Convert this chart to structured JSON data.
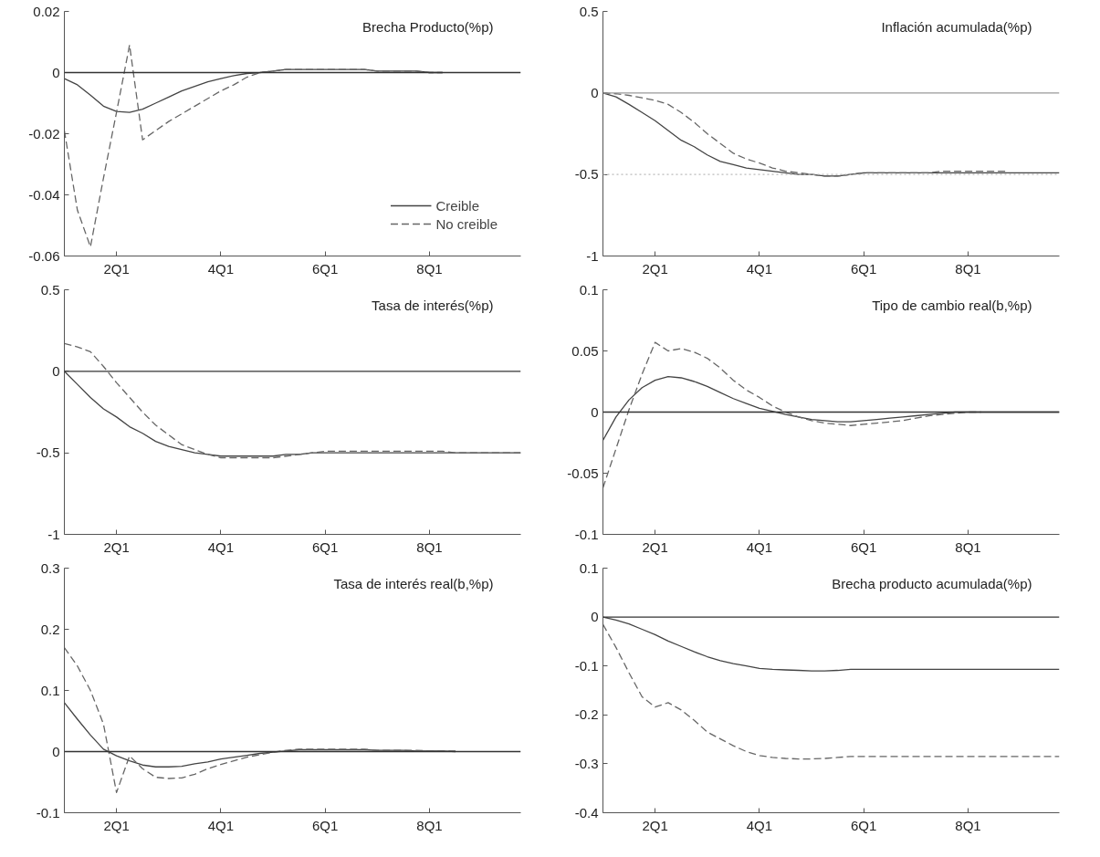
{
  "chart_data": [
    {
      "type": "line",
      "title": "Brecha Producto(%p)",
      "legend": "bottom right",
      "grid": false,
      "categories": [
        null,
        null,
        null,
        null,
        "2Q1",
        null,
        null,
        null,
        null,
        null,
        null,
        null,
        "4Q1",
        null,
        null,
        null,
        null,
        null,
        null,
        null,
        "6Q1",
        null,
        null,
        null,
        null,
        null,
        null,
        null,
        "8Q1",
        null,
        null,
        null,
        null,
        null,
        null,
        null
      ],
      "ylim": [
        -0.06,
        0.02
      ],
      "yticks": [
        -0.06,
        -0.04,
        -0.02,
        0,
        0.02
      ],
      "ref_lines": [
        {
          "axis": "y",
          "value": 0,
          "color": "#333333",
          "line_style": "solid"
        }
      ],
      "series": [
        {
          "name": "Creible",
          "color": "#444444",
          "line_style": "solid",
          "values": [
            -0.002,
            -0.004,
            -0.0074,
            -0.011,
            -0.0127,
            -0.013,
            -0.012,
            -0.01,
            -0.008,
            -0.006,
            -0.0045,
            -0.003,
            -0.002,
            -0.001,
            -0.0003,
            0,
            0.0005,
            0.001,
            0.001,
            0.001,
            0.001,
            0.001,
            0.001,
            0.001,
            0.0005,
            0.0005,
            0.0005,
            0.0005,
            0,
            0,
            null,
            null,
            null,
            null,
            null,
            null
          ]
        },
        {
          "name": "No creible",
          "color": "#666666",
          "line_style": "dashed",
          "values": [
            -0.019,
            -0.045,
            -0.057,
            -0.0345,
            -0.013,
            0.009,
            -0.022,
            -0.019,
            -0.016,
            -0.0135,
            -0.011,
            -0.0085,
            -0.006,
            -0.004,
            -0.0015,
            0,
            0.0005,
            0.001,
            0.001,
            0.001,
            0.001,
            0.001,
            0.001,
            0.001,
            0.0005,
            0.0005,
            0.0005,
            0.0005,
            0,
            0,
            null,
            null,
            null,
            null,
            null,
            null
          ]
        }
      ]
    },
    {
      "type": "line",
      "title": "Inflación acumulada(%p)",
      "grid": false,
      "categories": [
        null,
        null,
        null,
        null,
        "2Q1",
        null,
        null,
        null,
        null,
        null,
        null,
        null,
        "4Q1",
        null,
        null,
        null,
        null,
        null,
        null,
        null,
        "6Q1",
        null,
        null,
        null,
        null,
        null,
        null,
        null,
        "8Q1",
        null,
        null,
        null,
        null,
        null,
        null,
        null
      ],
      "ylim": [
        -1,
        0.5
      ],
      "yticks": [
        -1,
        -0.5,
        0,
        0.5
      ],
      "ref_lines": [
        {
          "axis": "y",
          "value": 0,
          "color": "#999999",
          "line_style": "solid"
        },
        {
          "axis": "y",
          "value": -0.5,
          "color": "#bbbbbb",
          "line_style": "dotted"
        }
      ],
      "series": [
        {
          "color": "#444444",
          "line_style": "solid",
          "values": [
            0,
            -0.024,
            -0.07,
            -0.12,
            -0.17,
            -0.23,
            -0.29,
            -0.33,
            -0.38,
            -0.42,
            -0.44,
            -0.46,
            -0.47,
            -0.48,
            -0.49,
            -0.5,
            -0.5,
            -0.51,
            -0.51,
            -0.5,
            -0.49,
            -0.49,
            -0.49,
            -0.49,
            -0.49,
            -0.49,
            -0.49,
            -0.49,
            -0.49,
            -0.49,
            -0.49,
            -0.49,
            -0.49,
            -0.49,
            -0.49,
            -0.49
          ]
        },
        {
          "color": "#666666",
          "line_style": "dashed",
          "values": [
            0,
            -0.005,
            -0.015,
            -0.03,
            -0.045,
            -0.07,
            -0.12,
            -0.18,
            -0.25,
            -0.31,
            -0.37,
            -0.405,
            -0.43,
            -0.46,
            -0.48,
            -0.49,
            -0.5,
            -0.51,
            -0.51,
            -0.5,
            -0.49,
            -0.49,
            -0.49,
            -0.49,
            -0.49,
            -0.49,
            -0.48,
            -0.48,
            -0.48,
            -0.48,
            -0.48,
            -0.48,
            null,
            null,
            null,
            null
          ]
        }
      ]
    },
    {
      "type": "line",
      "title": "Tasa de interés(%p)",
      "grid": false,
      "categories": [
        null,
        null,
        null,
        null,
        "2Q1",
        null,
        null,
        null,
        null,
        null,
        null,
        null,
        "4Q1",
        null,
        null,
        null,
        null,
        null,
        null,
        null,
        "6Q1",
        null,
        null,
        null,
        null,
        null,
        null,
        null,
        "8Q1",
        null,
        null,
        null,
        null,
        null,
        null,
        null
      ],
      "ylim": [
        -1,
        0.5
      ],
      "yticks": [
        -1,
        -0.5,
        0,
        0.5
      ],
      "ref_lines": [
        {
          "axis": "y",
          "value": 0,
          "color": "#333333",
          "line_style": "solid"
        }
      ],
      "series": [
        {
          "color": "#444444",
          "line_style": "solid",
          "values": [
            0,
            -0.08,
            -0.16,
            -0.23,
            -0.28,
            -0.34,
            -0.38,
            -0.43,
            -0.46,
            -0.48,
            -0.5,
            -0.51,
            -0.52,
            -0.52,
            -0.52,
            -0.52,
            -0.52,
            -0.51,
            -0.51,
            -0.5,
            -0.5,
            -0.5,
            -0.5,
            -0.5,
            -0.5,
            -0.5,
            -0.5,
            -0.5,
            -0.5,
            -0.5,
            -0.5,
            -0.5,
            -0.5,
            -0.5,
            -0.5,
            -0.5
          ]
        },
        {
          "color": "#666666",
          "line_style": "dashed",
          "values": [
            0.17,
            0.15,
            0.12,
            0.03,
            -0.07,
            -0.16,
            -0.25,
            -0.33,
            -0.39,
            -0.45,
            -0.48,
            -0.51,
            -0.53,
            -0.53,
            -0.53,
            -0.53,
            -0.53,
            -0.52,
            -0.51,
            -0.5,
            -0.49,
            -0.49,
            -0.49,
            -0.49,
            -0.49,
            -0.49,
            -0.49,
            -0.49,
            -0.49,
            -0.49,
            -0.5,
            -0.5,
            -0.5,
            -0.5,
            -0.5,
            -0.5
          ]
        }
      ]
    },
    {
      "type": "line",
      "title": "Tipo de cambio real(b,%p)",
      "grid": false,
      "categories": [
        null,
        null,
        null,
        null,
        "2Q1",
        null,
        null,
        null,
        null,
        null,
        null,
        null,
        "4Q1",
        null,
        null,
        null,
        null,
        null,
        null,
        null,
        "6Q1",
        null,
        null,
        null,
        null,
        null,
        null,
        null,
        "8Q1",
        null,
        null,
        null,
        null,
        null,
        null,
        null
      ],
      "ylim": [
        -0.1,
        0.1
      ],
      "yticks": [
        -0.1,
        -0.05,
        0,
        0.05,
        0.1
      ],
      "ref_lines": [
        {
          "axis": "y",
          "value": 0,
          "color": "#333333",
          "line_style": "solid"
        }
      ],
      "series": [
        {
          "color": "#444444",
          "line_style": "solid",
          "values": [
            -0.023,
            -0.004,
            0.01,
            0.02,
            0.026,
            0.029,
            0.028,
            0.025,
            0.021,
            0.016,
            0.011,
            0.007,
            0.003,
            0.0006,
            -0.002,
            -0.004,
            -0.006,
            -0.007,
            -0.008,
            -0.008,
            -0.007,
            -0.006,
            -0.005,
            -0.004,
            -0.003,
            -0.002,
            -0.001,
            0,
            0,
            0,
            0,
            0,
            0,
            0,
            0,
            0
          ]
        },
        {
          "color": "#666666",
          "line_style": "dashed",
          "values": [
            -0.062,
            -0.03,
            0.002,
            0.031,
            0.057,
            0.05,
            0.052,
            0.049,
            0.044,
            0.036,
            0.026,
            0.018,
            0.012,
            0.005,
            0,
            -0.004,
            -0.007,
            -0.009,
            -0.01,
            -0.011,
            -0.01,
            -0.009,
            -0.008,
            -0.007,
            -0.005,
            -0.003,
            -0.002,
            -0.001,
            0,
            0,
            null,
            null,
            null,
            null,
            null,
            null
          ]
        }
      ]
    },
    {
      "type": "line",
      "title": "Tasa de interés real(b,%p)",
      "grid": false,
      "categories": [
        null,
        null,
        null,
        null,
        "2Q1",
        null,
        null,
        null,
        null,
        null,
        null,
        null,
        "4Q1",
        null,
        null,
        null,
        null,
        null,
        null,
        null,
        "6Q1",
        null,
        null,
        null,
        null,
        null,
        null,
        null,
        "8Q1",
        null,
        null,
        null,
        null,
        null,
        null,
        null
      ],
      "ylim": [
        -0.1,
        0.3
      ],
      "yticks": [
        -0.1,
        0,
        0.1,
        0.2,
        0.3
      ],
      "ref_lines": [
        {
          "axis": "y",
          "value": 0,
          "color": "#333333",
          "line_style": "solid"
        }
      ],
      "series": [
        {
          "color": "#444444",
          "line_style": "solid",
          "values": [
            0.08,
            0.053,
            0.027,
            0.004,
            -0.007,
            -0.015,
            -0.022,
            -0.025,
            -0.025,
            -0.024,
            -0.02,
            -0.017,
            -0.012,
            -0.009,
            -0.006,
            -0.003,
            -0.001,
            0.001,
            0.003,
            0.003,
            0.003,
            0.003,
            0.003,
            0.003,
            0.002,
            0.002,
            0.002,
            0.001,
            0.001,
            0.001,
            0,
            null,
            null,
            null,
            null,
            null
          ]
        },
        {
          "color": "#666666",
          "line_style": "dashed",
          "values": [
            0.17,
            0.14,
            0.1,
            0.045,
            -0.067,
            -0.007,
            -0.028,
            -0.042,
            -0.044,
            -0.043,
            -0.037,
            -0.028,
            -0.021,
            -0.015,
            -0.009,
            -0.005,
            -0.001,
            0.002,
            0.004,
            0.004,
            0.004,
            0.004,
            0.004,
            0.004,
            0.002,
            0.002,
            0.002,
            0.002,
            0.001,
            0.001,
            0.001,
            null,
            null,
            null,
            null,
            null
          ]
        }
      ]
    },
    {
      "type": "line",
      "title": "Brecha producto acumulada(%p)",
      "grid": false,
      "categories": [
        null,
        null,
        null,
        null,
        "2Q1",
        null,
        null,
        null,
        null,
        null,
        null,
        null,
        "4Q1",
        null,
        null,
        null,
        null,
        null,
        null,
        null,
        "6Q1",
        null,
        null,
        null,
        null,
        null,
        null,
        null,
        "8Q1",
        null,
        null,
        null,
        null,
        null,
        null,
        null
      ],
      "ylim": [
        -0.4,
        0.1
      ],
      "yticks": [
        -0.4,
        -0.3,
        -0.2,
        -0.1,
        0,
        0.1
      ],
      "ref_lines": [
        {
          "axis": "y",
          "value": 0,
          "color": "#333333",
          "line_style": "solid"
        }
      ],
      "series": [
        {
          "color": "#444444",
          "line_style": "solid",
          "values": [
            0,
            -0.006,
            -0.014,
            -0.025,
            -0.036,
            -0.049,
            -0.06,
            -0.071,
            -0.081,
            -0.089,
            -0.095,
            -0.1,
            -0.105,
            -0.107,
            -0.108,
            -0.109,
            -0.11,
            -0.11,
            -0.109,
            -0.107,
            -0.107,
            -0.107,
            -0.107,
            -0.107,
            -0.107,
            -0.107,
            -0.107,
            -0.107,
            -0.107,
            -0.107,
            -0.107,
            -0.107,
            -0.107,
            -0.107,
            -0.107,
            -0.107
          ]
        },
        {
          "color": "#666666",
          "line_style": "dashed",
          "values": [
            -0.015,
            -0.062,
            -0.114,
            -0.163,
            -0.184,
            -0.175,
            -0.19,
            -0.211,
            -0.235,
            -0.249,
            -0.263,
            -0.275,
            -0.283,
            -0.287,
            -0.289,
            -0.29,
            -0.29,
            -0.289,
            -0.287,
            -0.285,
            -0.285,
            -0.285,
            -0.285,
            -0.285,
            -0.285,
            -0.285,
            -0.285,
            -0.285,
            -0.285,
            -0.285,
            -0.285,
            -0.285,
            -0.285,
            -0.285,
            -0.285,
            -0.285
          ]
        }
      ]
    }
  ]
}
